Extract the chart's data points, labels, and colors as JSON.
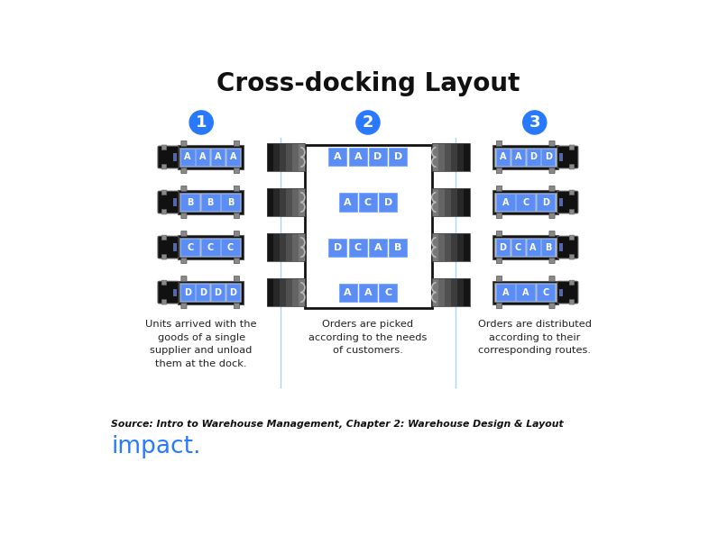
{
  "title": "Cross-docking Layout",
  "title_fontsize": 20,
  "background_color": "#ffffff",
  "blue_circle_color": "#2979FF",
  "blue_box_color": "#5b8df5",
  "truck_dark": "#1a1a1a",
  "truck_mid": "#2e2e2e",
  "truck_light_edge": "#888888",
  "warehouse_border": "#111111",
  "warehouse_interior": "#ffffff",
  "section_labels": [
    "1",
    "2",
    "3"
  ],
  "section1_rows": [
    {
      "letters": [
        "A",
        "A",
        "A",
        "A"
      ]
    },
    {
      "letters": [
        "B",
        "B",
        "B"
      ]
    },
    {
      "letters": [
        "C",
        "C",
        "C"
      ]
    },
    {
      "letters": [
        "D",
        "D",
        "D",
        "D"
      ]
    }
  ],
  "section2_rows": [
    {
      "letters": [
        "A",
        "A",
        "D",
        "D"
      ]
    },
    {
      "letters": [
        "A",
        "C",
        "D"
      ]
    },
    {
      "letters": [
        "D",
        "C",
        "A",
        "B"
      ]
    },
    {
      "letters": [
        "A",
        "A",
        "C"
      ]
    }
  ],
  "section3_rows": [
    {
      "letters": [
        "A",
        "A",
        "D",
        "D"
      ]
    },
    {
      "letters": [
        "A",
        "C",
        "D"
      ]
    },
    {
      "letters": [
        "D",
        "C",
        "A",
        "B"
      ]
    },
    {
      "letters": [
        "A",
        "A",
        "C"
      ]
    }
  ],
  "desc1": "Units arrived with the\ngoods of a single\nsupplier and unload\nthem at the dock.",
  "desc2": "Orders are picked\naccording to the needs\nof customers.",
  "desc3": "Orders are distributed\naccording to their\ncorresponding routes.",
  "source_text": "Source: Intro to Warehouse Management, Chapter 2: Warehouse Design & Layout",
  "brand_text": "impact.",
  "brand_color": "#2979FF",
  "divider_color": "#aad4f5",
  "letter_color": "#ffffff"
}
